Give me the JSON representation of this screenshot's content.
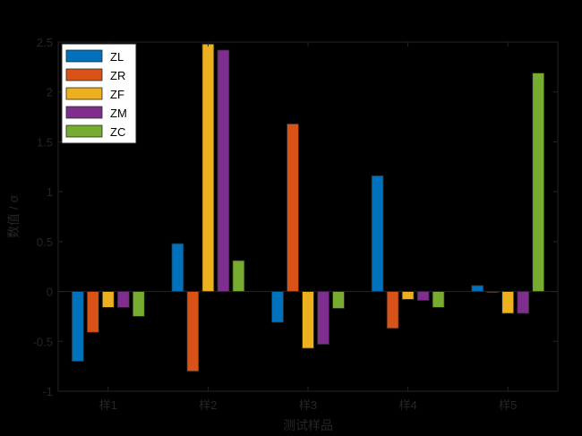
{
  "chart_data": {
    "type": "bar",
    "categories": [
      "样1",
      "样2",
      "样3",
      "样4",
      "样5"
    ],
    "series": [
      {
        "name": "ZL",
        "color": "#0072BD",
        "values": [
          -0.7,
          0.48,
          -0.31,
          1.16,
          0.06
        ]
      },
      {
        "name": "ZR",
        "color": "#D95319",
        "values": [
          -0.41,
          -0.8,
          1.68,
          -0.37,
          -0.01
        ]
      },
      {
        "name": "ZF",
        "color": "#EDB120",
        "values": [
          -0.16,
          2.48,
          -0.57,
          -0.08,
          -0.22
        ]
      },
      {
        "name": "ZM",
        "color": "#7E2F8E",
        "values": [
          -0.16,
          2.42,
          -0.53,
          -0.09,
          -0.22
        ]
      },
      {
        "name": "ZC",
        "color": "#77AC30",
        "values": [
          -0.25,
          0.31,
          -0.17,
          -0.16,
          2.19
        ]
      }
    ],
    "xlabel": "测试样品",
    "ylabel": "数值 / σ",
    "ylim": [
      -1,
      2.5
    ],
    "yticks": [
      -1,
      -0.5,
      0,
      0.5,
      1,
      1.5,
      2,
      2.5
    ],
    "ytick_labels": [
      "-1",
      "-0.5",
      "0",
      "0.5",
      "1",
      "1.5",
      "2",
      "2.5"
    ],
    "legend_position": "top-left",
    "grid": false
  }
}
